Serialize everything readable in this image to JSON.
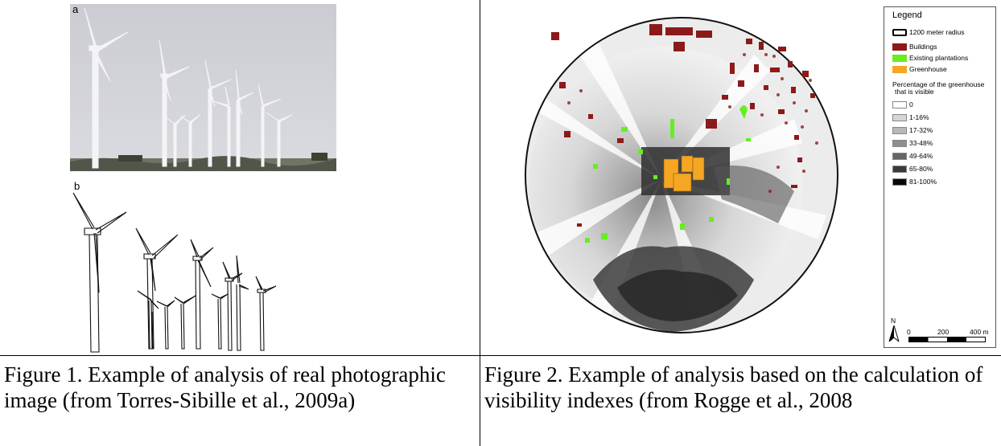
{
  "figure1": {
    "label_a": "a",
    "label_b": "b",
    "caption": "Figure 1. Example of analysis of real photographic image (from Torres-Sibille et al., 2009a)"
  },
  "figure2": {
    "caption": "Figure 2. Example of analysis based on the calculation of visibility indexes (from Rogge  et al., 2008",
    "legend": {
      "title": "Legend",
      "radius_label": "1200 meter radius",
      "items": [
        {
          "label": "Buildings",
          "color": "#8b1a1a"
        },
        {
          "label": "Existing plantations",
          "color": "#66ee22"
        },
        {
          "label": "Greenhouse",
          "color": "#f5a623"
        }
      ],
      "subtitle_line1": "Percentage of the greenhouse",
      "subtitle_line2": "that is visible",
      "classes": [
        {
          "label": "0",
          "color": "#ffffff"
        },
        {
          "label": "1-16%",
          "color": "#d6d6d6"
        },
        {
          "label": "17-32%",
          "color": "#b8b8b8"
        },
        {
          "label": "33-48%",
          "color": "#8e8e8e"
        },
        {
          "label": "49-64%",
          "color": "#666666"
        },
        {
          "label": "65-80%",
          "color": "#3a3a3a"
        },
        {
          "label": "81-100%",
          "color": "#080808"
        }
      ],
      "north": "N",
      "scale_0": "0",
      "scale_200": "200",
      "scale_400": "400 m"
    }
  }
}
